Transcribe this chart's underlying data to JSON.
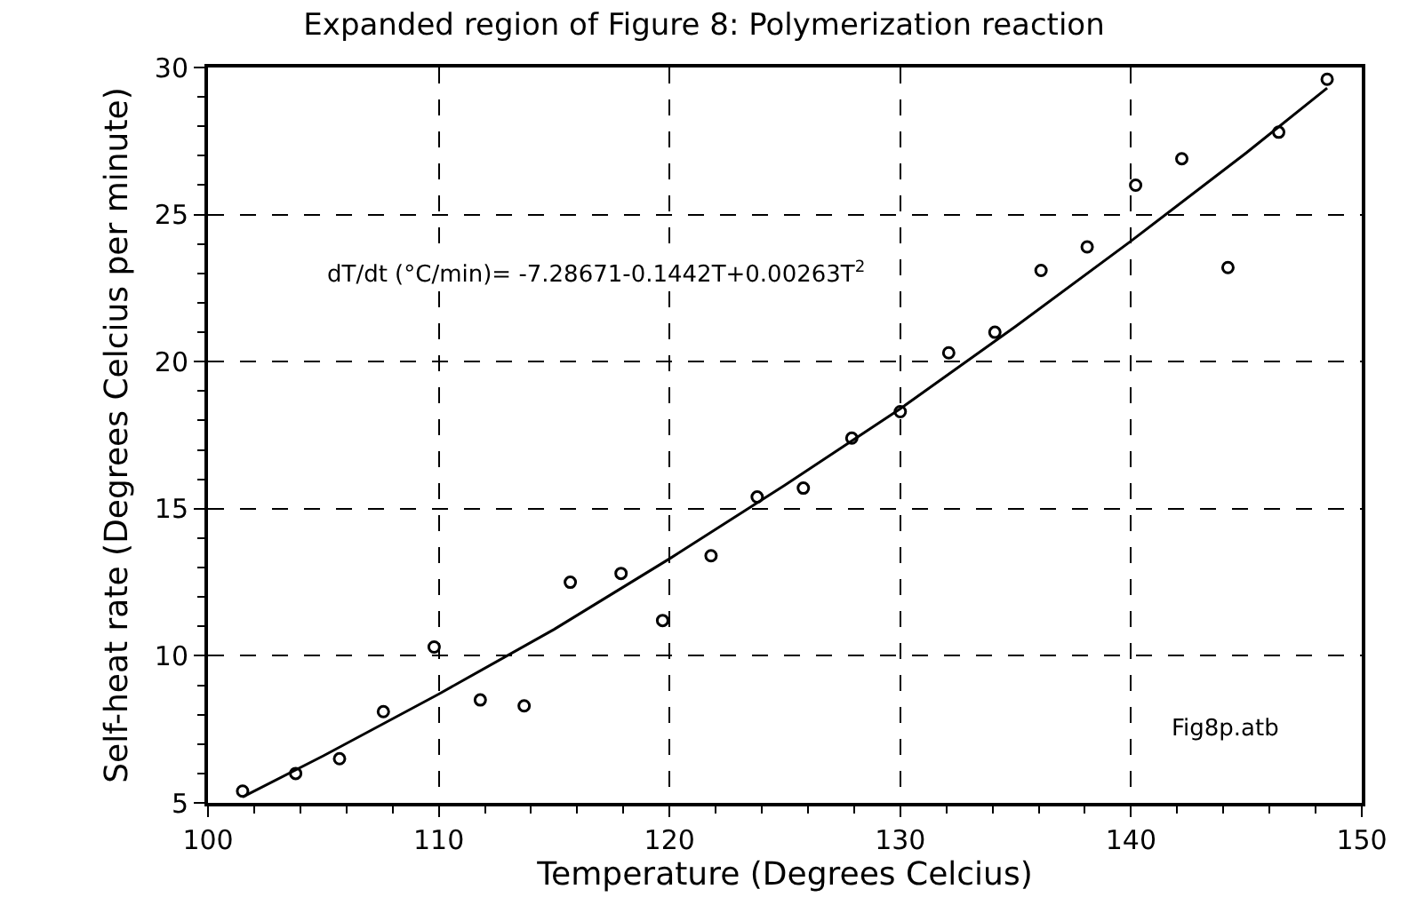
{
  "chart_data": {
    "type": "scatter",
    "title": "Expanded region of Figure 8: Polymerization reaction",
    "xlabel": "Temperature (Degrees Celcius)",
    "ylabel": "Self-heat rate (Degrees Celcius per minute)",
    "annotations": [
      "dT/dt (°C/min)= -7.28671-0.1442T+0.00263T$^{2}$",
      "Fig8p.atb"
    ],
    "xlim": [
      100,
      150
    ],
    "xticks": [
      100,
      110,
      120,
      130,
      140,
      150
    ],
    "ylim": [
      5,
      30
    ],
    "yticks": [
      5,
      10,
      15,
      20,
      25,
      30
    ],
    "grid": true,
    "marker": "circle",
    "series": [
      {
        "color": "#000000",
        "x": [
          101.5,
          103.8,
          105.7,
          107.6,
          109.8,
          111.8,
          113.7,
          115.7,
          117.9,
          119.7,
          121.8,
          123.8,
          125.8,
          127.9,
          130.0,
          132.1,
          134.1,
          136.1,
          138.1,
          140.2,
          142.2,
          144.2,
          146.4,
          148.5
        ],
        "values": [
          5.4,
          6.0,
          6.5,
          8.1,
          10.3,
          8.5,
          8.3,
          12.5,
          12.8,
          11.2,
          13.4,
          15.4,
          15.7,
          17.4,
          18.3,
          20.3,
          21.0,
          23.1,
          23.9,
          26.0,
          26.9,
          23.2,
          27.8,
          29.6
        ]
      },
      {
        "type": "line",
        "color": "#000000",
        "marker": "none",
        "line_style": "solid",
        "x": [
          101.5,
          105,
          110,
          115,
          120,
          125,
          130,
          135,
          140,
          145,
          148.5
        ],
        "values": [
          5.2,
          6.6,
          8.7,
          10.9,
          13.3,
          15.8,
          18.4,
          21.2,
          24.1,
          27.1,
          29.3
        ]
      }
    ]
  }
}
